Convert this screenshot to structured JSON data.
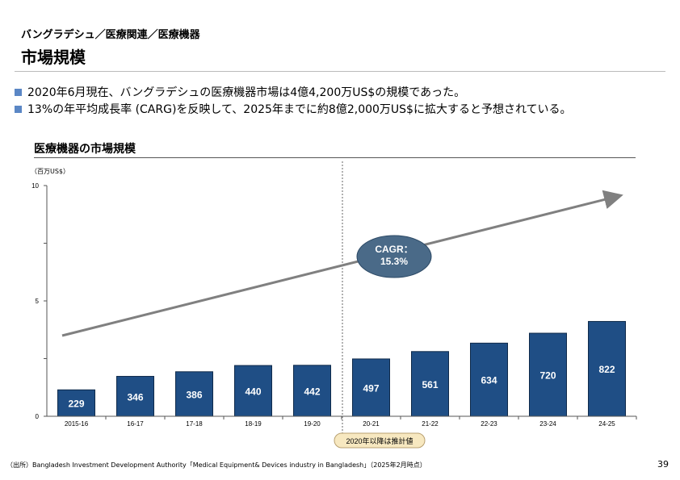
{
  "header": {
    "breadcrumb": "バングラデシュ／医療関連／医療機器",
    "title": "市場規模"
  },
  "bullets": [
    "2020年6月現在、バングラデシュの医療機器市場は4億4,200万US$の規模であった。",
    "13%の年平均成長率 (CARG)を反映して、2025年までに約8億2,000万US$に拡大すると予想されている。"
  ],
  "colors": {
    "bar": "#1f4e85",
    "bullet": "#5b87c5",
    "bubble": "#4a6a88",
    "arrow": "#808080",
    "badge": "#f7e8c0"
  },
  "chart_data": {
    "type": "bar",
    "title": "医療機器の市場規模",
    "unit": "（百万US$）",
    "categories": [
      "2015-16",
      "16-17",
      "17-18",
      "18-19",
      "19-20",
      "20-21",
      "21-22",
      "22-23",
      "23-24",
      "24-25"
    ],
    "values": [
      229,
      346,
      386,
      440,
      442,
      497,
      561,
      634,
      720,
      822
    ],
    "y_ticks": [
      "0",
      "5",
      "10"
    ],
    "ylim": [
      0,
      10
    ],
    "grid": false,
    "annotations": {
      "cagr": "CAGR：15.3%",
      "cagr_line1": "CAGR：",
      "cagr_line2": "15.3%",
      "forecast_note": "2020年以降は推計値"
    }
  },
  "footer": {
    "source": "（出所）Bangladesh Investment Development Authority「Medical Equipment& Devices industry in Bangladesh」（2025年2月時点）",
    "page": "39"
  }
}
